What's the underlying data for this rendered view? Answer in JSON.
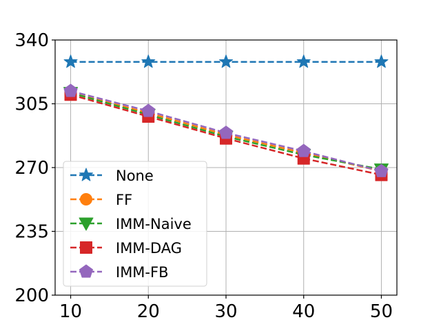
{
  "chart_data": {
    "type": "line",
    "title": "",
    "xlabel": "",
    "ylabel": "",
    "x": [
      10,
      20,
      30,
      40,
      50
    ],
    "xlim": [
      8,
      52
    ],
    "ylim": [
      200,
      340
    ],
    "xticks": [
      10,
      20,
      30,
      40,
      50
    ],
    "yticks": [
      200,
      235,
      270,
      305,
      340
    ],
    "grid": true,
    "legend_position": "bottom-left",
    "series": [
      {
        "name": "None",
        "color": "#1f77b4",
        "marker": "star",
        "values": [
          328,
          328,
          328,
          328,
          328
        ]
      },
      {
        "name": "FF",
        "color": "#ff7f0e",
        "marker": "circle",
        "values": [
          311,
          300,
          288,
          278,
          268
        ]
      },
      {
        "name": "IMM-Naive",
        "color": "#2ca02c",
        "marker": "triangle-down",
        "values": [
          311,
          299,
          287,
          277,
          269
        ]
      },
      {
        "name": "IMM-DAG",
        "color": "#d62728",
        "marker": "square",
        "values": [
          310,
          298,
          286,
          275,
          266
        ]
      },
      {
        "name": "IMM-FB",
        "color": "#9467bd",
        "marker": "pentagon",
        "values": [
          312,
          301,
          289,
          279,
          268
        ]
      }
    ]
  }
}
